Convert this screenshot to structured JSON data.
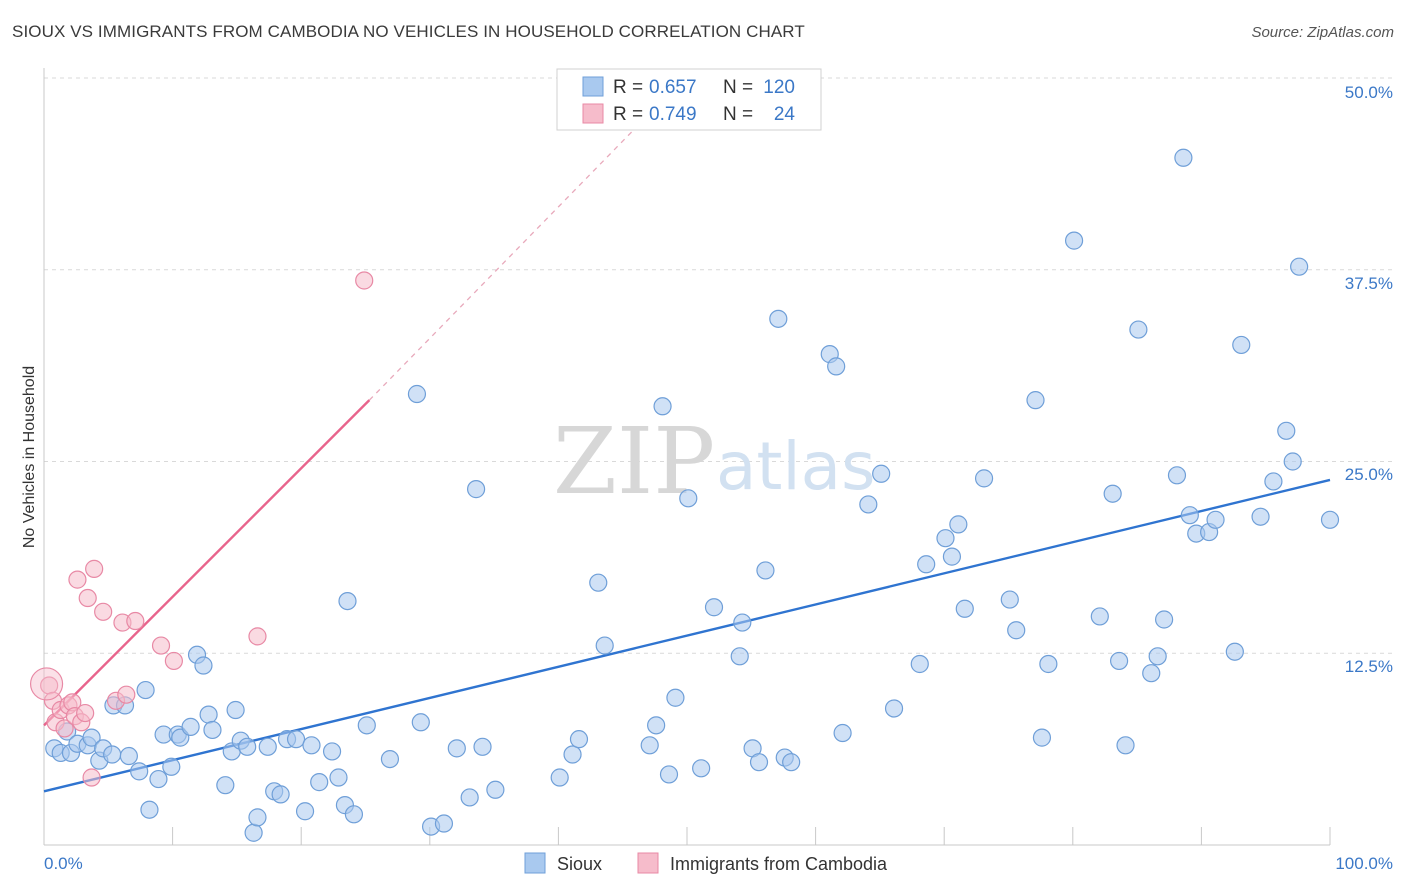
{
  "title": "SIOUX VS IMMIGRANTS FROM CAMBODIA NO VEHICLES IN HOUSEHOLD CORRELATION CHART",
  "source": "Source: ZipAtlas.com",
  "watermark": {
    "zip": "ZIP",
    "atlas": "atlas"
  },
  "colors": {
    "blue_fill": "#a9c9ef",
    "blue_stroke": "#6f9fd8",
    "blue_line": "#2f74d0",
    "pink_fill": "#f6bccb",
    "pink_stroke": "#e889a5",
    "pink_line": "#e8648c",
    "grid": "#d9d9d9",
    "tick_text": "#3b78c7"
  },
  "legend": {
    "r_label": "R =",
    "n_label": "N =",
    "rows": [
      {
        "name": "Sioux",
        "r": "0.657",
        "n": "120",
        "color": "blue"
      },
      {
        "name": "Immigrants from Cambodia",
        "r": "0.749",
        "n": "24",
        "color": "pink"
      }
    ]
  },
  "chart_data": {
    "type": "scatter",
    "title": "SIOUX VS IMMIGRANTS FROM CAMBODIA NO VEHICLES IN HOUSEHOLD CORRELATION CHART",
    "xlabel": "",
    "ylabel": "No Vehicles in Household",
    "xlim": [
      0,
      100
    ],
    "ylim": [
      0,
      50
    ],
    "x_tick_labels": [
      {
        "value": 0,
        "label": "0.0%"
      },
      {
        "value": 100,
        "label": "100.0%"
      }
    ],
    "y_tick_labels": [
      {
        "value": 12.5,
        "label": "12.5%"
      },
      {
        "value": 25,
        "label": "25.0%"
      },
      {
        "value": 37.5,
        "label": "37.5%"
      },
      {
        "value": 50,
        "label": "50.0%"
      }
    ],
    "grid": true,
    "legend_position": "top-center",
    "series": [
      {
        "name": "Sioux",
        "color": "blue",
        "trend": {
          "x0": 0,
          "y0": 3.5,
          "x1": 100,
          "y1": 23.8,
          "style": "solid"
        },
        "points": [
          [
            0.8,
            6.3
          ],
          [
            1.3,
            6.0
          ],
          [
            1.8,
            7.4
          ],
          [
            2.1,
            6.0
          ],
          [
            2.6,
            6.6
          ],
          [
            3.4,
            6.5
          ],
          [
            3.7,
            7.0
          ],
          [
            4.3,
            5.5
          ],
          [
            4.6,
            6.3
          ],
          [
            5.3,
            5.9
          ],
          [
            5.4,
            9.1
          ],
          [
            6.3,
            9.1
          ],
          [
            6.6,
            5.8
          ],
          [
            7.4,
            4.8
          ],
          [
            7.9,
            10.1
          ],
          [
            8.2,
            2.3
          ],
          [
            8.9,
            4.3
          ],
          [
            9.3,
            7.2
          ],
          [
            9.9,
            5.1
          ],
          [
            10.4,
            7.2
          ],
          [
            10.6,
            7.0
          ],
          [
            11.4,
            7.7
          ],
          [
            11.9,
            12.4
          ],
          [
            12.4,
            11.7
          ],
          [
            12.8,
            8.5
          ],
          [
            13.1,
            7.5
          ],
          [
            14.1,
            3.9
          ],
          [
            14.6,
            6.1
          ],
          [
            14.9,
            8.8
          ],
          [
            15.3,
            6.8
          ],
          [
            15.8,
            6.4
          ],
          [
            16.3,
            0.8
          ],
          [
            16.6,
            1.8
          ],
          [
            17.4,
            6.4
          ],
          [
            17.9,
            3.5
          ],
          [
            18.4,
            3.3
          ],
          [
            18.9,
            6.9
          ],
          [
            19.6,
            6.9
          ],
          [
            20.3,
            2.2
          ],
          [
            20.8,
            6.5
          ],
          [
            21.4,
            4.1
          ],
          [
            22.4,
            6.1
          ],
          [
            22.9,
            4.4
          ],
          [
            23.4,
            2.6
          ],
          [
            23.6,
            15.9
          ],
          [
            24.1,
            2.0
          ],
          [
            25.1,
            7.8
          ],
          [
            26.9,
            5.6
          ],
          [
            29.0,
            29.4
          ],
          [
            29.3,
            8.0
          ],
          [
            30.1,
            1.2
          ],
          [
            31.1,
            1.4
          ],
          [
            32.1,
            6.3
          ],
          [
            33.1,
            3.1
          ],
          [
            33.6,
            23.2
          ],
          [
            34.1,
            6.4
          ],
          [
            35.1,
            3.6
          ],
          [
            40.1,
            4.4
          ],
          [
            41.1,
            5.9
          ],
          [
            41.6,
            6.9
          ],
          [
            43.1,
            17.1
          ],
          [
            43.6,
            13.0
          ],
          [
            47.1,
            6.5
          ],
          [
            47.6,
            7.8
          ],
          [
            48.1,
            28.6
          ],
          [
            48.6,
            4.6
          ],
          [
            49.1,
            9.6
          ],
          [
            50.1,
            22.6
          ],
          [
            51.1,
            5.0
          ],
          [
            52.1,
            15.5
          ],
          [
            54.1,
            12.3
          ],
          [
            54.3,
            14.5
          ],
          [
            55.1,
            6.3
          ],
          [
            55.6,
            5.4
          ],
          [
            56.1,
            17.9
          ],
          [
            57.1,
            34.3
          ],
          [
            57.6,
            5.7
          ],
          [
            58.1,
            5.4
          ],
          [
            61.1,
            32.0
          ],
          [
            61.6,
            31.2
          ],
          [
            62.1,
            7.3
          ],
          [
            64.1,
            22.2
          ],
          [
            65.1,
            24.2
          ],
          [
            66.1,
            8.9
          ],
          [
            68.1,
            11.8
          ],
          [
            68.6,
            18.3
          ],
          [
            70.1,
            20.0
          ],
          [
            70.6,
            18.8
          ],
          [
            71.1,
            20.9
          ],
          [
            71.6,
            15.4
          ],
          [
            73.1,
            23.9
          ],
          [
            75.1,
            16.0
          ],
          [
            75.6,
            14.0
          ],
          [
            77.1,
            29.0
          ],
          [
            77.6,
            7.0
          ],
          [
            78.1,
            11.8
          ],
          [
            80.1,
            39.4
          ],
          [
            82.1,
            14.9
          ],
          [
            83.1,
            22.9
          ],
          [
            83.6,
            12.0
          ],
          [
            84.1,
            6.5
          ],
          [
            85.1,
            33.6
          ],
          [
            86.1,
            11.2
          ],
          [
            86.6,
            12.3
          ],
          [
            87.1,
            14.7
          ],
          [
            88.1,
            24.1
          ],
          [
            88.6,
            44.8
          ],
          [
            89.1,
            21.5
          ],
          [
            89.6,
            20.3
          ],
          [
            90.6,
            20.4
          ],
          [
            91.1,
            21.2
          ],
          [
            92.6,
            12.6
          ],
          [
            93.1,
            32.6
          ],
          [
            94.6,
            21.4
          ],
          [
            95.6,
            23.7
          ],
          [
            96.6,
            27.0
          ],
          [
            97.1,
            25.0
          ],
          [
            97.6,
            37.7
          ],
          [
            100.0,
            21.2
          ]
        ]
      },
      {
        "name": "Immigrants from Cambodia",
        "color": "pink",
        "trend": {
          "x0": 0,
          "y0": 7.8,
          "x1": 25.3,
          "y1": 29.0,
          "style": "solid",
          "dash_x1": 46.3,
          "dash_y1": 47.0
        },
        "points": [
          [
            0.4,
            10.4
          ],
          [
            0.7,
            9.4
          ],
          [
            0.9,
            8.0
          ],
          [
            1.3,
            8.8
          ],
          [
            1.6,
            7.6
          ],
          [
            1.9,
            9.1
          ],
          [
            2.2,
            9.3
          ],
          [
            2.4,
            8.4
          ],
          [
            2.6,
            17.3
          ],
          [
            2.9,
            8.0
          ],
          [
            3.2,
            8.6
          ],
          [
            3.4,
            16.1
          ],
          [
            3.7,
            4.4
          ],
          [
            3.9,
            18.0
          ],
          [
            4.6,
            15.2
          ],
          [
            5.6,
            9.4
          ],
          [
            6.1,
            14.5
          ],
          [
            6.4,
            9.8
          ],
          [
            7.1,
            14.6
          ],
          [
            9.1,
            13.0
          ],
          [
            10.1,
            12.0
          ],
          [
            16.6,
            13.6
          ],
          [
            24.9,
            36.8
          ],
          [
            0.2,
            10.5
          ]
        ]
      }
    ]
  }
}
